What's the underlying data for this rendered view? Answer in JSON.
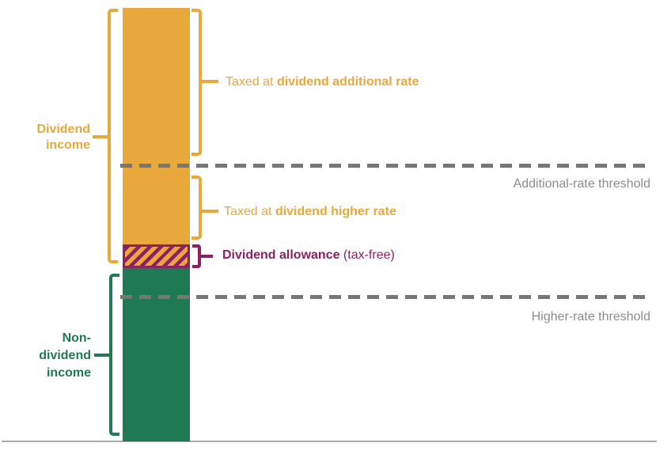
{
  "colors": {
    "dividend_yellow": "#E9A83C",
    "non_dividend_green": "#1F7A54",
    "allowance_maroon": "#8E2162",
    "dash_gray": "#767676",
    "threshold_text_gray": "#8C8C8C",
    "baseline_gray": "#A9A9A9"
  },
  "bar": {
    "segments": [
      {
        "name": "dividend-income-taxed-at-additional-rate",
        "fill": "solid yellow"
      },
      {
        "name": "dividend-income-taxed-at-higher-rate",
        "fill": "solid yellow"
      },
      {
        "name": "dividend-allowance",
        "fill": "maroon diagonal hatch on yellow"
      },
      {
        "name": "non-dividend-income",
        "fill": "solid green"
      }
    ]
  },
  "left_labels": {
    "dividend_income_line1": "Dividend",
    "dividend_income_line2": "income",
    "non_dividend_line1": "Non-",
    "non_dividend_line2": "dividend",
    "non_dividend_line3": "income"
  },
  "callouts": {
    "additional_rate_prefix": "Taxed at ",
    "additional_rate_bold": "dividend additional rate",
    "higher_rate_prefix": "Taxed at ",
    "higher_rate_bold": "dividend higher rate",
    "allowance_bold": "Dividend allowance",
    "allowance_suffix": " (tax-free)"
  },
  "thresholds": {
    "additional_rate_label": "Additional-rate threshold",
    "higher_rate_label": "Higher-rate threshold"
  }
}
